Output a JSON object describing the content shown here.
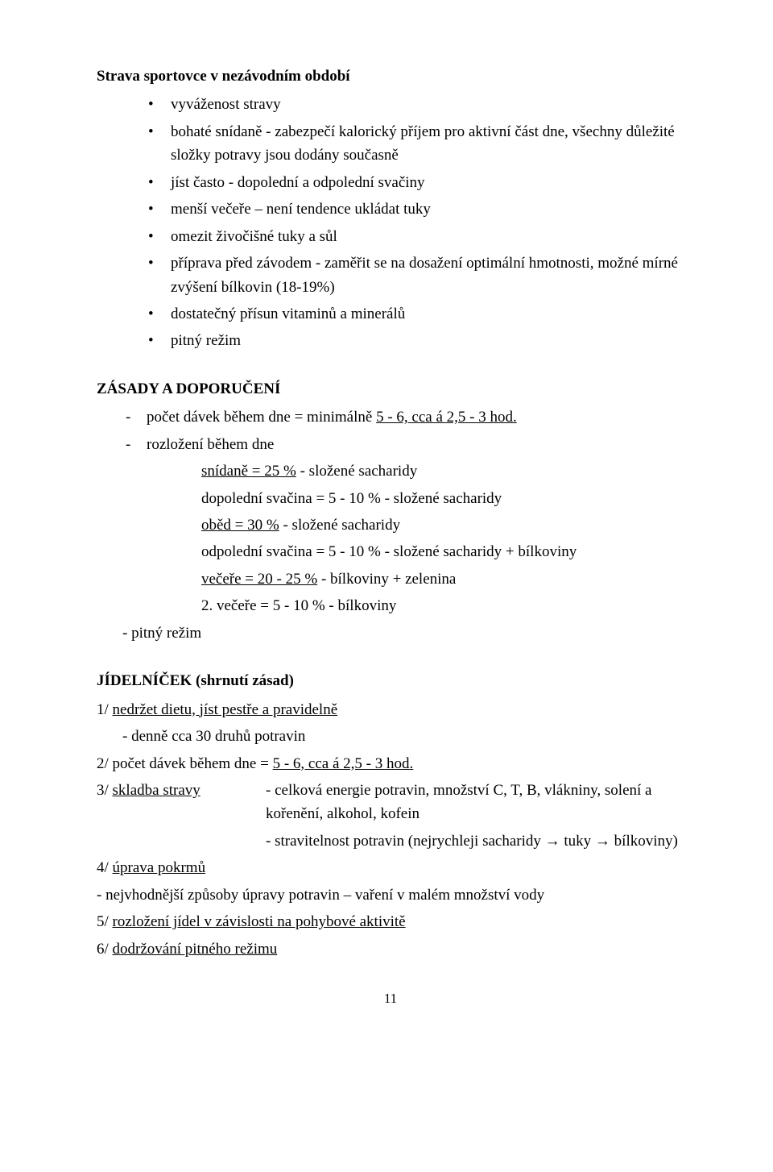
{
  "title": "Strava sportovce v nezávodním období",
  "bullets": [
    "vyváženost stravy",
    "bohaté snídaně - zabezpečí kalorický příjem pro aktivní část dne, všechny důležité složky potravy jsou dodány současně",
    "jíst často - dopolední a odpolední svačiny",
    "menší večeře – není tendence ukládat tuky",
    "omezit živočišné tuky a sůl",
    "příprava před závodem - zaměřit se na dosažení optimální hmotnosti, možné mírné zvýšení bílkovin (18-19%)",
    "dostatečný přísun vitaminů a minerálů",
    "pitný režim"
  ],
  "zasady": {
    "heading": "ZÁSADY A DOPORUČENÍ",
    "dashes": {
      "dash1_pre": "počet dávek během dne = minimálně ",
      "dash1_u": "5 - 6, cca á 2,5 - 3 hod.",
      "dash2": "rozložení během dne"
    },
    "rows": {
      "r1_u": "snídaně = 25 %",
      "r1_rest": " - složené sacharidy",
      "r2": "dopolední svačina = 5 - 10 % - složené sacharidy",
      "r3_u": "oběd = 30 %",
      "r3_rest": " - složené sacharidy",
      "r4": "odpolední svačina = 5 - 10 % - složené sacharidy + bílkoviny",
      "r5_u": "večeře = 20 - 25 %",
      "r5_rest": " - bílkoviny + zelenina",
      "r6": "2. večeře = 5 - 10 % - bílkoviny"
    },
    "pitny": "- pitný režim"
  },
  "jidel": {
    "heading": "JÍDELNÍČEK (shrnutí zásad)",
    "l1_pre": "1/ ",
    "l1_u": "nedržet dietu, jíst pestře a pravidelně",
    "l1_sub": "- denně cca 30 druhů potravin",
    "l2_pre": "2/ počet dávek během dne  = ",
    "l2_u": "5 - 6, cca á 2,5 - 3 hod.",
    "l3_pre": "3/ ",
    "l3_u": "skladba stravy",
    "l3_right": "- celková energie potravin, množství C, T, B, vlákniny, solení a kořenění, alkohol, kofein",
    "l3_right2": "- stravitelnost potravin (nejrychleji sacharidy → tuky → bílkoviny)",
    "l4_pre": "4/ ",
    "l4_u": "úprava pokrmů",
    "l4_sub": "- nejvhodnější způsoby úpravy potravin – vaření v malém množství vody",
    "l5_pre": "5/ ",
    "l5_u": "rozložení jídel v závislosti na pohybové aktivitě",
    "l6_pre": "6/ ",
    "l6_u": "dodržování pitného režimu"
  },
  "pageNumber": "11"
}
